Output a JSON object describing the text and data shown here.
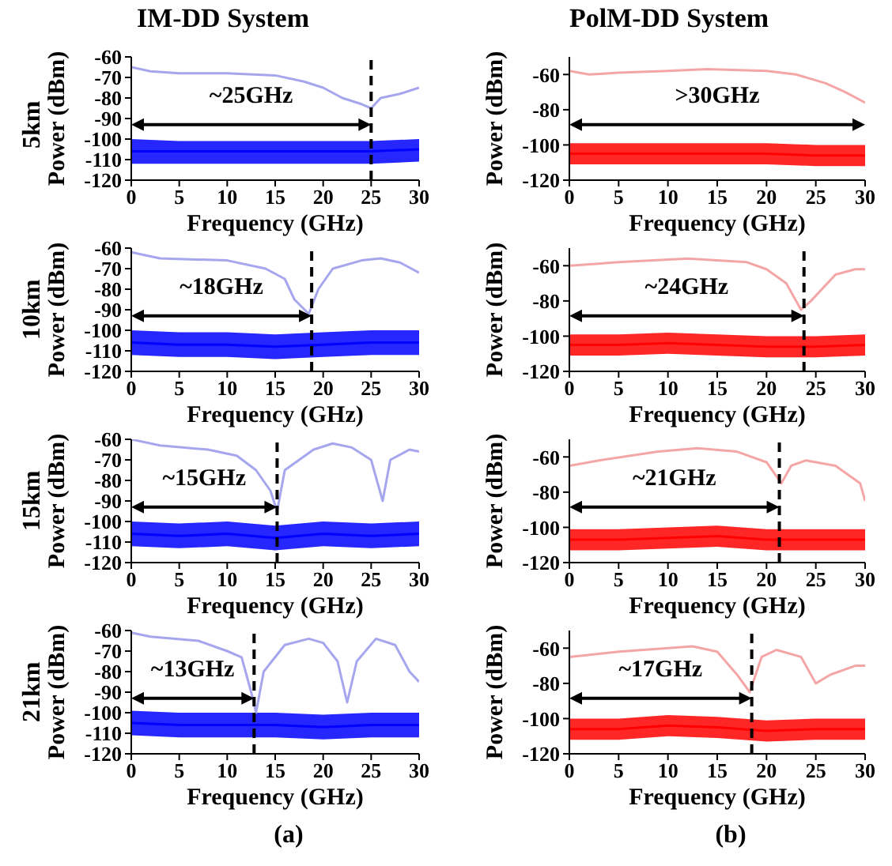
{
  "chart_data": [
    {
      "type": "line",
      "title": "IM-DD System",
      "subtitle": "5km",
      "xlabel": "Frequency (GHz)",
      "ylabel": "Power (dBm)",
      "xlim": [
        0,
        30
      ],
      "xticks": [
        0,
        5,
        10,
        15,
        20,
        25,
        30
      ],
      "ylim": [
        -120,
        -60
      ],
      "yticks": [
        -120,
        -110,
        -100,
        -90,
        -80,
        -70,
        -60
      ],
      "series": [
        {
          "color": "#a6a6ee",
          "x": [
            0,
            2,
            5,
            10,
            15,
            18,
            20,
            22,
            24,
            25,
            26,
            28,
            30
          ],
          "values": [
            -65,
            -67,
            -68,
            -68,
            -69,
            -72,
            -75,
            -80,
            -83,
            -85,
            -80,
            -78,
            -75
          ]
        },
        {
          "color": "#0000ff",
          "x": [
            0,
            5,
            10,
            15,
            20,
            25,
            30
          ],
          "values": [
            -106,
            -106,
            -106,
            -106,
            -106,
            -106,
            -105
          ],
          "lower": [
            -112,
            -112,
            -112,
            -112,
            -112,
            -112,
            -111
          ],
          "upper": [
            -100,
            -101,
            -101,
            -101,
            -101,
            -101,
            -100
          ]
        }
      ],
      "ref_lines": [
        {
          "axis": "x",
          "value": 25,
          "line_style": "dashed",
          "color": "#000000",
          "label": "~25GHz"
        }
      ]
    },
    {
      "type": "line",
      "title": "PolM-DD System",
      "xlabel": "Frequency (GHz)",
      "ylabel": "Power (dBm)",
      "xlim": [
        0,
        30
      ],
      "xticks": [
        0,
        5,
        10,
        15,
        20,
        25,
        30
      ],
      "ylim": [
        -120,
        -50
      ],
      "yticks": [
        -120,
        -100,
        -80,
        -60
      ],
      "series": [
        {
          "color": "#f4a6a6",
          "x": [
            0,
            2,
            5,
            10,
            14,
            20,
            23,
            26,
            28,
            30
          ],
          "values": [
            -58,
            -60,
            -59,
            -58,
            -57,
            -58,
            -60,
            -65,
            -70,
            -76
          ]
        },
        {
          "color": "#ff0000",
          "x": [
            0,
            5,
            10,
            15,
            20,
            25,
            30
          ],
          "values": [
            -105,
            -105,
            -105,
            -105,
            -105,
            -106,
            -106
          ],
          "lower": [
            -111,
            -111,
            -111,
            -111,
            -111,
            -112,
            -112
          ],
          "upper": [
            -99,
            -99,
            -99,
            -99,
            -99,
            -100,
            -100
          ]
        }
      ],
      "annotations": [
        ">30GHz"
      ]
    },
    {
      "type": "line",
      "subtitle": "10km",
      "xlabel": "Frequency (GHz)",
      "ylabel": "Power (dBm)",
      "xlim": [
        0,
        30
      ],
      "xticks": [
        0,
        5,
        10,
        15,
        20,
        25,
        30
      ],
      "ylim": [
        -120,
        -60
      ],
      "yticks": [
        -120,
        -110,
        -100,
        -90,
        -80,
        -70,
        -60
      ],
      "series": [
        {
          "color": "#a6a6ee",
          "x": [
            0,
            3,
            10,
            14,
            16,
            17,
            18.5,
            19.5,
            21,
            24,
            26,
            28,
            30
          ],
          "values": [
            -62,
            -65,
            -66,
            -70,
            -75,
            -85,
            -92,
            -80,
            -70,
            -66,
            -65,
            -67,
            -72
          ]
        },
        {
          "color": "#0000ff",
          "x": [
            0,
            5,
            10,
            15,
            20,
            25,
            30
          ],
          "values": [
            -106,
            -107,
            -107,
            -108,
            -107,
            -106,
            -106
          ],
          "lower": [
            -112,
            -113,
            -113,
            -114,
            -113,
            -112,
            -112
          ],
          "upper": [
            -100,
            -101,
            -101,
            -102,
            -101,
            -100,
            -100
          ]
        }
      ],
      "ref_lines": [
        {
          "axis": "x",
          "value": 18.8,
          "line_style": "dashed",
          "color": "#000000",
          "label": "~18GHz"
        }
      ]
    },
    {
      "type": "line",
      "xlabel": "Frequency (GHz)",
      "ylabel": "Power (dBm)",
      "xlim": [
        0,
        30
      ],
      "xticks": [
        0,
        5,
        10,
        15,
        20,
        25,
        30
      ],
      "ylim": [
        -120,
        -50
      ],
      "yticks": [
        -120,
        -100,
        -80,
        -60
      ],
      "series": [
        {
          "color": "#f4a6a6",
          "x": [
            0,
            5,
            12,
            18,
            20,
            22,
            23.5,
            24.5,
            27,
            29,
            30
          ],
          "values": [
            -60,
            -58,
            -56,
            -58,
            -62,
            -70,
            -85,
            -80,
            -65,
            -62,
            -62
          ]
        },
        {
          "color": "#ff0000",
          "x": [
            0,
            5,
            10,
            15,
            20,
            25,
            30
          ],
          "values": [
            -105,
            -105,
            -104,
            -105,
            -106,
            -106,
            -105
          ],
          "lower": [
            -111,
            -111,
            -110,
            -111,
            -112,
            -112,
            -111
          ],
          "upper": [
            -99,
            -99,
            -98,
            -99,
            -100,
            -100,
            -99
          ]
        }
      ],
      "ref_lines": [
        {
          "axis": "x",
          "value": 23.8,
          "line_style": "dashed",
          "color": "#000000",
          "label": "~24GHz"
        }
      ]
    },
    {
      "type": "line",
      "subtitle": "15km",
      "xlabel": "Frequency (GHz)",
      "ylabel": "Power (dBm)",
      "xlim": [
        0,
        30
      ],
      "xticks": [
        0,
        5,
        10,
        15,
        20,
        25,
        30
      ],
      "ylim": [
        -120,
        -60
      ],
      "yticks": [
        -120,
        -110,
        -100,
        -90,
        -80,
        -70,
        -60
      ],
      "series": [
        {
          "color": "#a6a6ee",
          "x": [
            0,
            3,
            8,
            11,
            13,
            14.5,
            15.2,
            16,
            19,
            21,
            23,
            25,
            26.2,
            27,
            29,
            30
          ],
          "values": [
            -60,
            -63,
            -65,
            -68,
            -75,
            -85,
            -95,
            -75,
            -65,
            -62,
            -64,
            -70,
            -90,
            -70,
            -65,
            -66
          ]
        },
        {
          "color": "#0000ff",
          "x": [
            0,
            5,
            10,
            15,
            20,
            25,
            30
          ],
          "values": [
            -106,
            -107,
            -106,
            -108,
            -106,
            -107,
            -106
          ],
          "lower": [
            -112,
            -113,
            -112,
            -114,
            -112,
            -113,
            -112
          ],
          "upper": [
            -100,
            -101,
            -100,
            -102,
            -100,
            -101,
            -100
          ]
        }
      ],
      "ref_lines": [
        {
          "axis": "x",
          "value": 15.2,
          "line_style": "dashed",
          "color": "#000000",
          "label": "~15GHz"
        }
      ]
    },
    {
      "type": "line",
      "xlabel": "Frequency (GHz)",
      "ylabel": "Power (dBm)",
      "xlim": [
        0,
        30
      ],
      "xticks": [
        0,
        5,
        10,
        15,
        20,
        25,
        30
      ],
      "ylim": [
        -120,
        -50
      ],
      "yticks": [
        -120,
        -100,
        -80,
        -60
      ],
      "series": [
        {
          "color": "#f4a6a6",
          "x": [
            0,
            3,
            9,
            13,
            17,
            20,
            21.5,
            22.5,
            24,
            27,
            29.5,
            30
          ],
          "values": [
            -65,
            -62,
            -57,
            -55,
            -57,
            -63,
            -75,
            -65,
            -62,
            -65,
            -75,
            -85
          ]
        },
        {
          "color": "#ff0000",
          "x": [
            0,
            5,
            10,
            15,
            20,
            25,
            30
          ],
          "values": [
            -107,
            -107,
            -106,
            -105,
            -107,
            -107,
            -107
          ],
          "lower": [
            -113,
            -113,
            -112,
            -111,
            -113,
            -113,
            -113
          ],
          "upper": [
            -101,
            -101,
            -100,
            -99,
            -101,
            -101,
            -101
          ]
        }
      ],
      "ref_lines": [
        {
          "axis": "x",
          "value": 21.3,
          "line_style": "dashed",
          "color": "#000000",
          "label": "~21GHz"
        }
      ]
    },
    {
      "type": "line",
      "subtitle": "21km",
      "xlabel": "Frequency (GHz)",
      "ylabel": "Power (dBm)",
      "xlim": [
        0,
        30
      ],
      "xticks": [
        0,
        5,
        10,
        15,
        20,
        25,
        30
      ],
      "ylim": [
        -120,
        -60
      ],
      "yticks": [
        -120,
        -110,
        -100,
        -90,
        -80,
        -70,
        -60
      ],
      "series": [
        {
          "color": "#a6a6ee",
          "x": [
            0,
            2,
            7,
            10,
            11.5,
            12.5,
            13,
            13.8,
            16,
            18.5,
            20,
            21.5,
            22.5,
            23.5,
            25.5,
            27.5,
            29,
            30
          ],
          "values": [
            -61,
            -63,
            -65,
            -70,
            -73,
            -90,
            -100,
            -80,
            -67,
            -64,
            -66,
            -75,
            -95,
            -75,
            -64,
            -67,
            -80,
            -85
          ]
        },
        {
          "color": "#0000ff",
          "x": [
            0,
            5,
            10,
            15,
            20,
            25,
            30
          ],
          "values": [
            -105,
            -106,
            -106,
            -106,
            -107,
            -106,
            -106
          ],
          "lower": [
            -111,
            -112,
            -112,
            -112,
            -113,
            -112,
            -112
          ],
          "upper": [
            -99,
            -100,
            -100,
            -100,
            -101,
            -100,
            -100
          ]
        }
      ],
      "ref_lines": [
        {
          "axis": "x",
          "value": 12.8,
          "line_style": "dashed",
          "color": "#000000",
          "label": "~13GHz"
        }
      ],
      "annotations": [
        "(a)"
      ]
    },
    {
      "type": "line",
      "xlabel": "Frequency (GHz)",
      "ylabel": "Power (dBm)",
      "xlim": [
        0,
        30
      ],
      "xticks": [
        0,
        5,
        10,
        15,
        20,
        25,
        30
      ],
      "ylim": [
        -120,
        -50
      ],
      "yticks": [
        -120,
        -100,
        -80,
        -60
      ],
      "series": [
        {
          "color": "#f4a6a6",
          "x": [
            0,
            5,
            10,
            12.5,
            15,
            17,
            18.3,
            19.5,
            21,
            23.5,
            25,
            26.5,
            29,
            30
          ],
          "values": [
            -65,
            -62,
            -60,
            -59,
            -62,
            -75,
            -85,
            -65,
            -61,
            -65,
            -80,
            -75,
            -70,
            -70
          ]
        },
        {
          "color": "#ff0000",
          "x": [
            0,
            5,
            10,
            15,
            20,
            25,
            30
          ],
          "values": [
            -106,
            -106,
            -104,
            -105,
            -107,
            -106,
            -106
          ],
          "lower": [
            -112,
            -112,
            -110,
            -111,
            -113,
            -112,
            -112
          ],
          "upper": [
            -100,
            -100,
            -98,
            -99,
            -101,
            -100,
            -100
          ]
        }
      ],
      "ref_lines": [
        {
          "axis": "x",
          "value": 18.5,
          "line_style": "dashed",
          "color": "#000000",
          "label": "~17GHz"
        }
      ],
      "annotations": [
        "(b)"
      ]
    }
  ]
}
